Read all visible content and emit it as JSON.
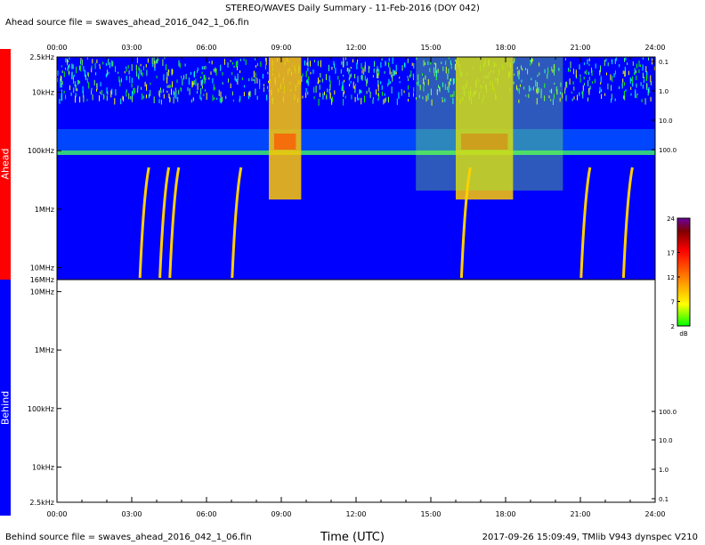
{
  "header": {
    "title": "STEREO/WAVES Daily Summary - 11-Feb-2016 (DOY 042)",
    "ahead_source": "Ahead source file = swaves_ahead_2016_042_1_06.fin"
  },
  "footer": {
    "behind_source": "Behind source file = swaves_ahead_2016_042_1_06.fin",
    "xlabel": "Time (UTC)",
    "stamp": "2017-09-26 15:09:49, TMlib V943 dynspec V210"
  },
  "side_labels": {
    "ahead": "Ahead",
    "behind": "Behind"
  },
  "colors": {
    "ahead_bar": "#ff0000",
    "behind_bar": "#0000ff",
    "background": "#0000ff"
  },
  "chart_data": [
    {
      "type": "heatmap",
      "panel": "Ahead",
      "x_ticks": [
        "00:00",
        "03:00",
        "06:00",
        "09:00",
        "12:00",
        "15:00",
        "18:00",
        "21:00",
        "24:00"
      ],
      "xlim": [
        0,
        24
      ],
      "y_ticks": [
        "2.5kHz",
        "10kHz",
        "100kHz",
        "1MHz",
        "10MHz",
        "16MHz"
      ],
      "y_scale": "log",
      "right_ticks": [
        "0.1",
        "1.0",
        "10.0",
        "100.0"
      ],
      "colorbar": {
        "ticks": [
          "2",
          "7",
          "12",
          "17",
          "24"
        ],
        "range": [
          2,
          24
        ],
        "unit": "dB"
      },
      "bursts_start_hours": [
        3.4,
        4.2,
        4.6,
        7.1,
        16.3,
        21.1,
        22.8
      ],
      "active_intervals_hours": [
        [
          8.5,
          9.8
        ],
        [
          16.0,
          18.3
        ]
      ]
    },
    {
      "type": "heatmap",
      "panel": "Behind",
      "x_ticks": [
        "00:00",
        "03:00",
        "06:00",
        "09:00",
        "12:00",
        "15:00",
        "18:00",
        "21:00",
        "24:00"
      ],
      "xlim": [
        0,
        24
      ],
      "y_ticks": [
        "10MHz",
        "1MHz",
        "100kHz",
        "10kHz",
        "2.5kHz"
      ],
      "y_scale": "log",
      "right_ticks": [
        "100.0",
        "10.0",
        "1.0",
        "0.1"
      ]
    }
  ]
}
